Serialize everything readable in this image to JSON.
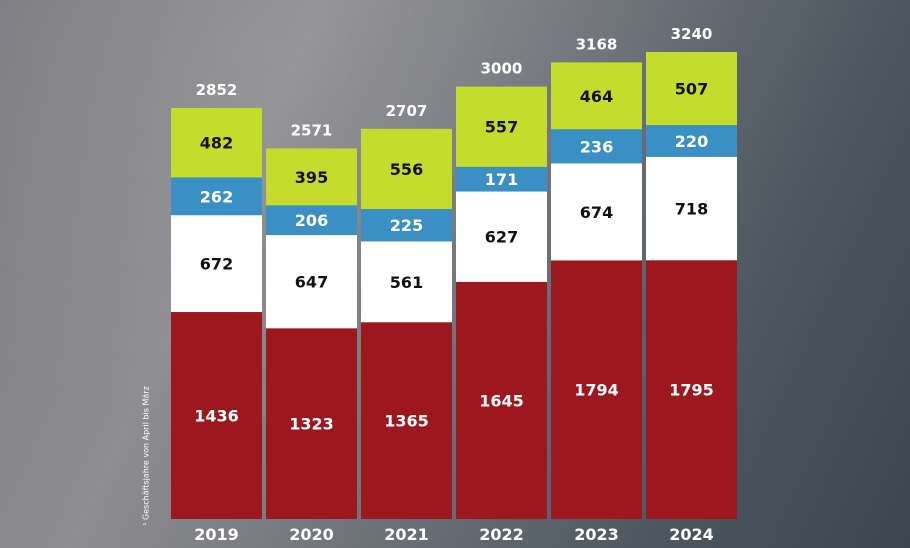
{
  "chart_data": {
    "type": "bar",
    "stacked": true,
    "categories": [
      "2019",
      "2020",
      "2021",
      "2022",
      "2023",
      "2024"
    ],
    "series": [
      {
        "values": [
          1436,
          1323,
          1365,
          1645,
          1794,
          1795
        ],
        "color": "#9c181e",
        "label_color": "#ffffff"
      },
      {
        "values": [
          672,
          647,
          561,
          627,
          674,
          718
        ],
        "color": "#ffffff",
        "label_color": "#111111"
      },
      {
        "values": [
          262,
          206,
          225,
          171,
          236,
          220
        ],
        "color": "#3a8fc5",
        "label_color": "#ffffff"
      },
      {
        "values": [
          482,
          395,
          556,
          557,
          464,
          507
        ],
        "color": "#c4dc2c",
        "label_color": "#111111"
      }
    ],
    "totals": [
      2852,
      2571,
      2707,
      3000,
      3168,
      3240
    ],
    "ylim": [
      0,
      3240
    ],
    "legend": false,
    "grid": false
  },
  "footnote": "¹ Geschäftsjahre von April bis März"
}
